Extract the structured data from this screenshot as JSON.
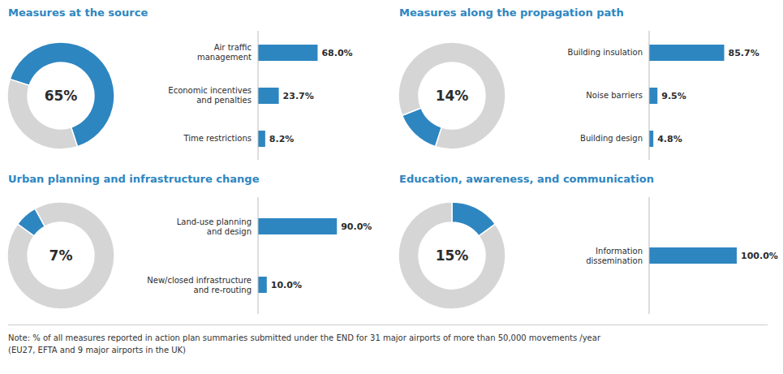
{
  "chart_data": [
    {
      "type": "pie",
      "title": "Measures at the source",
      "values": [
        65,
        35
      ],
      "colors": [
        "#2E86C1",
        "#D5D5D5"
      ],
      "annotations": [
        "65%"
      ]
    },
    {
      "type": "bar",
      "orientation": "horizontal",
      "categories": [
        "Air traffic\nmanagement",
        "Economic incentives\nand penalties",
        "Time restrictions"
      ],
      "values": [
        68.0,
        23.7,
        8.2
      ],
      "value_labels": [
        "68.0%",
        "23.7%",
        "8.2%"
      ],
      "color": "#2E86C1",
      "xlim": [
        0,
        100
      ],
      "data_labels": true,
      "tick_labels": "y",
      "grid": false
    },
    {
      "type": "pie",
      "title": "Measures along the propagation path",
      "values": [
        14,
        86
      ],
      "colors": [
        "#2E86C1",
        "#D5D5D5"
      ],
      "annotations": [
        "14%"
      ]
    },
    {
      "type": "bar",
      "orientation": "horizontal",
      "categories": [
        "Building insulation",
        "Noise barriers",
        "Building design"
      ],
      "values": [
        85.7,
        9.5,
        4.8
      ],
      "value_labels": [
        "85.7%",
        "9.5%",
        "4.8%"
      ],
      "color": "#2E86C1",
      "xlim": [
        0,
        100
      ],
      "data_labels": true,
      "tick_labels": "y",
      "grid": false
    },
    {
      "type": "pie",
      "title": "Urban planning and infrastructure change",
      "values": [
        7,
        93
      ],
      "colors": [
        "#2E86C1",
        "#D5D5D5"
      ],
      "annotations": [
        "7%"
      ]
    },
    {
      "type": "bar",
      "orientation": "horizontal",
      "categories": [
        "Land-use planning\nand design",
        "New/closed infrastructure\nand re-routing"
      ],
      "values": [
        90.0,
        10.0
      ],
      "value_labels": [
        "90.0%",
        "10.0%"
      ],
      "color": "#2E86C1",
      "xlim": [
        0,
        100
      ],
      "data_labels": true,
      "tick_labels": "y",
      "grid": false
    },
    {
      "type": "pie",
      "title": "Education, awareness, and communication",
      "values": [
        15,
        85
      ],
      "colors": [
        "#2E86C1",
        "#D5D5D5"
      ],
      "annotations": [
        "15%"
      ]
    },
    {
      "type": "bar",
      "orientation": "horizontal",
      "categories": [
        "Information\ndissemination"
      ],
      "values": [
        100.0
      ],
      "value_labels": [
        "100.0%"
      ],
      "color": "#2E86C1",
      "xlim": [
        0,
        100
      ],
      "data_labels": true,
      "tick_labels": "y",
      "grid": false
    }
  ],
  "note": "Note: % of all measures reported in action plan summaries submitted under the END for 31 major airports of more than 50,000 movements /year\n(EU27, EFTA and 9 major airports in the UK)"
}
